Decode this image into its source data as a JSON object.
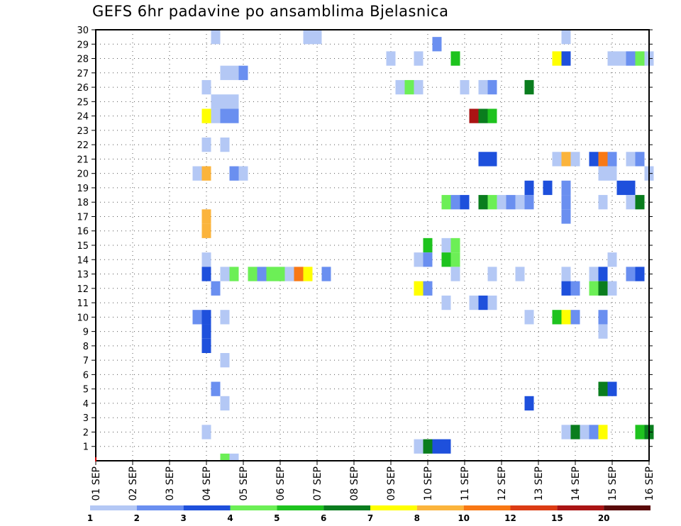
{
  "chart_data": {
    "type": "heatmap",
    "title": "GEFS 6hr padavine po ansamblima Bjelasnica",
    "xlabel": "",
    "ylabel": "",
    "x_ticks": [
      "01 SEP",
      "02 SEP",
      "03 SEP",
      "04 SEP",
      "05 SEP",
      "06 SEP",
      "07 SEP",
      "08 SEP",
      "09 SEP",
      "10 SEP",
      "11 SEP",
      "12 SEP",
      "13 SEP",
      "14 SEP",
      "15 SEP",
      "16 SEP"
    ],
    "x_range_days": [
      1,
      16
    ],
    "y_ticks": [
      "1",
      "2",
      "3",
      "4",
      "5",
      "6",
      "7",
      "8",
      "9",
      "10",
      "11",
      "12",
      "13",
      "14",
      "15",
      "16",
      "17",
      "18",
      "19",
      "20",
      "21",
      "22",
      "23",
      "24",
      "25",
      "26",
      "27",
      "28",
      "29",
      "30"
    ],
    "y_range": [
      0,
      30
    ],
    "grid": true,
    "legend_placement": "bottom",
    "color_scale": {
      "labels": [
        "1",
        "2",
        "3",
        "4",
        "5",
        "6",
        "7",
        "8",
        "10",
        "12",
        "15",
        "20"
      ],
      "colors": [
        "#b4c8f5",
        "#6a8ff0",
        "#1e50dc",
        "#6cef56",
        "#1ec31e",
        "#0a7d1e",
        "#ffff00",
        "#fbb43c",
        "#f87814",
        "#dc3c14",
        "#aa1414",
        "#5a0a0a"
      ]
    },
    "cells": [
      {
        "day": 4.25,
        "member": 30,
        "value": 1
      },
      {
        "day": 6.75,
        "member": 30,
        "value": 1
      },
      {
        "day": 7.0,
        "member": 30,
        "value": 1
      },
      {
        "day": 13.75,
        "member": 30,
        "value": 1
      },
      {
        "day": 10.25,
        "member": 29,
        "value": 2
      },
      {
        "day": 9.0,
        "member": 28,
        "value": 1
      },
      {
        "day": 9.75,
        "member": 28,
        "value": 1
      },
      {
        "day": 10.75,
        "member": 28,
        "value": 5
      },
      {
        "day": 13.5,
        "member": 28,
        "value": 7
      },
      {
        "day": 13.75,
        "member": 28,
        "value": 3
      },
      {
        "day": 15.0,
        "member": 28,
        "value": 1
      },
      {
        "day": 15.25,
        "member": 28,
        "value": 1
      },
      {
        "day": 15.5,
        "member": 28,
        "value": 2
      },
      {
        "day": 15.75,
        "member": 28,
        "value": 4
      },
      {
        "day": 16.0,
        "member": 28,
        "value": 1
      },
      {
        "day": 4.5,
        "member": 27,
        "value": 1
      },
      {
        "day": 4.75,
        "member": 27,
        "value": 1
      },
      {
        "day": 5.0,
        "member": 27,
        "value": 2
      },
      {
        "day": 4.0,
        "member": 26,
        "value": 1
      },
      {
        "day": 9.25,
        "member": 26,
        "value": 1
      },
      {
        "day": 9.5,
        "member": 26,
        "value": 4
      },
      {
        "day": 9.75,
        "member": 26,
        "value": 1
      },
      {
        "day": 11.0,
        "member": 26,
        "value": 1
      },
      {
        "day": 11.5,
        "member": 26,
        "value": 1
      },
      {
        "day": 11.75,
        "member": 26,
        "value": 2
      },
      {
        "day": 12.75,
        "member": 26,
        "value": 6
      },
      {
        "day": 4.25,
        "member": 25,
        "value": 1
      },
      {
        "day": 4.5,
        "member": 25,
        "value": 1
      },
      {
        "day": 4.75,
        "member": 25,
        "value": 1
      },
      {
        "day": 4.0,
        "member": 24,
        "value": 7
      },
      {
        "day": 4.25,
        "member": 24,
        "value": 1
      },
      {
        "day": 4.5,
        "member": 24,
        "value": 2
      },
      {
        "day": 4.75,
        "member": 24,
        "value": 2
      },
      {
        "day": 11.25,
        "member": 24,
        "value": 15
      },
      {
        "day": 11.5,
        "member": 24,
        "value": 6
      },
      {
        "day": 11.75,
        "member": 24,
        "value": 5
      },
      {
        "day": 4.0,
        "member": 22,
        "value": 1
      },
      {
        "day": 4.5,
        "member": 22,
        "value": 1
      },
      {
        "day": 11.5,
        "member": 21,
        "value": 3
      },
      {
        "day": 11.75,
        "member": 21,
        "value": 3
      },
      {
        "day": 13.5,
        "member": 21,
        "value": 1
      },
      {
        "day": 13.75,
        "member": 21,
        "value": 8
      },
      {
        "day": 14.0,
        "member": 21,
        "value": 1
      },
      {
        "day": 14.5,
        "member": 21,
        "value": 3
      },
      {
        "day": 14.75,
        "member": 21,
        "value": 10
      },
      {
        "day": 15.0,
        "member": 21,
        "value": 2
      },
      {
        "day": 15.5,
        "member": 21,
        "value": 1
      },
      {
        "day": 15.75,
        "member": 21,
        "value": 2
      },
      {
        "day": 3.75,
        "member": 20,
        "value": 1
      },
      {
        "day": 4.0,
        "member": 20,
        "value": 8
      },
      {
        "day": 4.75,
        "member": 20,
        "value": 2
      },
      {
        "day": 5.0,
        "member": 20,
        "value": 1
      },
      {
        "day": 14.75,
        "member": 20,
        "value": 1
      },
      {
        "day": 15.0,
        "member": 20,
        "value": 1
      },
      {
        "day": 16.0,
        "member": 20,
        "value": 1
      },
      {
        "day": 12.75,
        "member": 19,
        "value": 3
      },
      {
        "day": 13.25,
        "member": 19,
        "value": 3
      },
      {
        "day": 13.75,
        "member": 19,
        "value": 2
      },
      {
        "day": 15.25,
        "member": 19,
        "value": 3
      },
      {
        "day": 15.5,
        "member": 19,
        "value": 3
      },
      {
        "day": 10.5,
        "member": 18,
        "value": 4
      },
      {
        "day": 10.75,
        "member": 18,
        "value": 2
      },
      {
        "day": 11.0,
        "member": 18,
        "value": 3
      },
      {
        "day": 11.5,
        "member": 18,
        "value": 6
      },
      {
        "day": 11.75,
        "member": 18,
        "value": 4
      },
      {
        "day": 12.0,
        "member": 18,
        "value": 1
      },
      {
        "day": 12.25,
        "member": 18,
        "value": 2
      },
      {
        "day": 12.5,
        "member": 18,
        "value": 1
      },
      {
        "day": 12.75,
        "member": 18,
        "value": 2
      },
      {
        "day": 13.75,
        "member": 18,
        "value": 2
      },
      {
        "day": 14.75,
        "member": 18,
        "value": 1
      },
      {
        "day": 15.5,
        "member": 18,
        "value": 1
      },
      {
        "day": 15.75,
        "member": 18,
        "value": 6
      },
      {
        "day": 13.75,
        "member": 17,
        "value": 2
      },
      {
        "day": 4.0,
        "member": 17,
        "value": 8
      },
      {
        "day": 4.0,
        "member": 16,
        "value": 8
      },
      {
        "day": 10.0,
        "member": 15,
        "value": 5
      },
      {
        "day": 10.5,
        "member": 15,
        "value": 1
      },
      {
        "day": 10.75,
        "member": 15,
        "value": 4
      },
      {
        "day": 4.0,
        "member": 14,
        "value": 1
      },
      {
        "day": 9.75,
        "member": 14,
        "value": 1
      },
      {
        "day": 10.0,
        "member": 14,
        "value": 2
      },
      {
        "day": 10.5,
        "member": 14,
        "value": 5
      },
      {
        "day": 10.75,
        "member": 14,
        "value": 4
      },
      {
        "day": 15.0,
        "member": 14,
        "value": 1
      },
      {
        "day": 4.0,
        "member": 13,
        "value": 3
      },
      {
        "day": 4.5,
        "member": 13,
        "value": 1
      },
      {
        "day": 4.75,
        "member": 13,
        "value": 4
      },
      {
        "day": 5.25,
        "member": 13,
        "value": 4
      },
      {
        "day": 5.5,
        "member": 13,
        "value": 2
      },
      {
        "day": 5.75,
        "member": 13,
        "value": 4
      },
      {
        "day": 6.0,
        "member": 13,
        "value": 4
      },
      {
        "day": 6.25,
        "member": 13,
        "value": 1
      },
      {
        "day": 6.5,
        "member": 13,
        "value": 10
      },
      {
        "day": 6.75,
        "member": 13,
        "value": 7
      },
      {
        "day": 7.25,
        "member": 13,
        "value": 2
      },
      {
        "day": 10.75,
        "member": 13,
        "value": 1
      },
      {
        "day": 11.75,
        "member": 13,
        "value": 1
      },
      {
        "day": 12.5,
        "member": 13,
        "value": 1
      },
      {
        "day": 13.75,
        "member": 13,
        "value": 1
      },
      {
        "day": 14.5,
        "member": 13,
        "value": 1
      },
      {
        "day": 14.75,
        "member": 13,
        "value": 3
      },
      {
        "day": 15.5,
        "member": 13,
        "value": 2
      },
      {
        "day": 15.75,
        "member": 13,
        "value": 3
      },
      {
        "day": 4.25,
        "member": 12,
        "value": 2
      },
      {
        "day": 9.75,
        "member": 12,
        "value": 7
      },
      {
        "day": 10.0,
        "member": 12,
        "value": 2
      },
      {
        "day": 13.75,
        "member": 12,
        "value": 3
      },
      {
        "day": 14.0,
        "member": 12,
        "value": 2
      },
      {
        "day": 14.5,
        "member": 12,
        "value": 4
      },
      {
        "day": 14.75,
        "member": 12,
        "value": 6
      },
      {
        "day": 15.0,
        "member": 12,
        "value": 1
      },
      {
        "day": 10.5,
        "member": 11,
        "value": 1
      },
      {
        "day": 11.25,
        "member": 11,
        "value": 1
      },
      {
        "day": 11.5,
        "member": 11,
        "value": 3
      },
      {
        "day": 11.75,
        "member": 11,
        "value": 1
      },
      {
        "day": 3.75,
        "member": 10,
        "value": 2
      },
      {
        "day": 4.0,
        "member": 10,
        "value": 3
      },
      {
        "day": 4.5,
        "member": 10,
        "value": 1
      },
      {
        "day": 12.75,
        "member": 10,
        "value": 1
      },
      {
        "day": 13.5,
        "member": 10,
        "value": 5
      },
      {
        "day": 13.75,
        "member": 10,
        "value": 7
      },
      {
        "day": 14.0,
        "member": 10,
        "value": 2
      },
      {
        "day": 14.75,
        "member": 10,
        "value": 2
      },
      {
        "day": 4.0,
        "member": 9,
        "value": 3
      },
      {
        "day": 14.75,
        "member": 9,
        "value": 1
      },
      {
        "day": 4.0,
        "member": 8,
        "value": 3
      },
      {
        "day": 4.5,
        "member": 7,
        "value": 1
      },
      {
        "day": 4.25,
        "member": 5,
        "value": 2
      },
      {
        "day": 14.75,
        "member": 5,
        "value": 6
      },
      {
        "day": 15.0,
        "member": 5,
        "value": 3
      },
      {
        "day": 4.5,
        "member": 4,
        "value": 1
      },
      {
        "day": 12.75,
        "member": 4,
        "value": 3
      },
      {
        "day": 4.0,
        "member": 2,
        "value": 1
      },
      {
        "day": 13.75,
        "member": 2,
        "value": 1
      },
      {
        "day": 14.0,
        "member": 2,
        "value": 6
      },
      {
        "day": 14.25,
        "member": 2,
        "value": 1
      },
      {
        "day": 14.5,
        "member": 2,
        "value": 2
      },
      {
        "day": 14.75,
        "member": 2,
        "value": 7
      },
      {
        "day": 15.75,
        "member": 2,
        "value": 5
      },
      {
        "day": 16.0,
        "member": 2,
        "value": 6
      },
      {
        "day": 9.75,
        "member": 1,
        "value": 1
      },
      {
        "day": 10.0,
        "member": 1,
        "value": 6
      },
      {
        "day": 10.25,
        "member": 1,
        "value": 3
      },
      {
        "day": 10.5,
        "member": 1,
        "value": 3
      },
      {
        "day": 4.5,
        "member": 0,
        "value": 4
      },
      {
        "day": 4.75,
        "member": 0,
        "value": 1
      }
    ]
  }
}
